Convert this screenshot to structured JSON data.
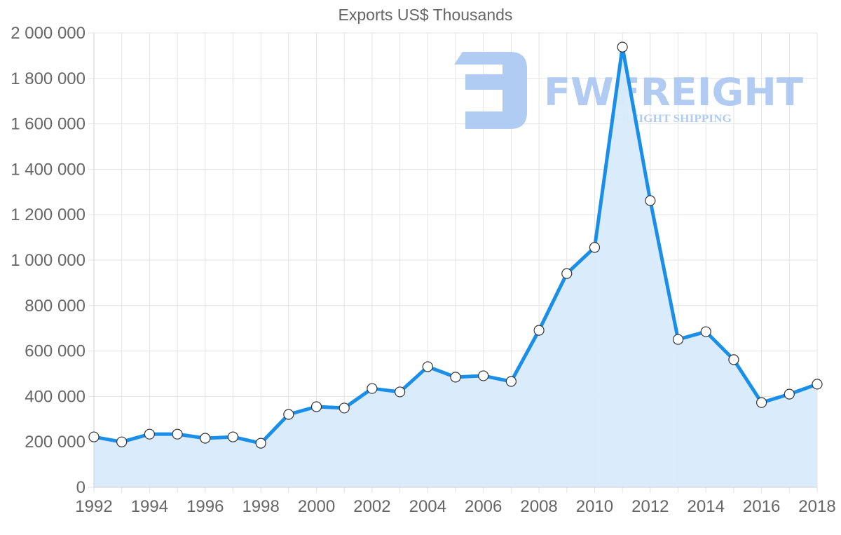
{
  "chart_data": {
    "type": "line",
    "title": "Exports US$ Thousands",
    "xlabel": "",
    "ylabel": "",
    "x": [
      1992,
      1993,
      1994,
      1995,
      1996,
      1997,
      1998,
      1999,
      2000,
      2001,
      2002,
      2003,
      2004,
      2005,
      2006,
      2007,
      2008,
      2009,
      2010,
      2011,
      2012,
      2013,
      2014,
      2015,
      2016,
      2017,
      2018
    ],
    "series": [
      {
        "name": "Exports US$ Thousands",
        "values": [
          222000,
          200000,
          234000,
          234000,
          216000,
          222000,
          194000,
          321000,
          355000,
          349000,
          435000,
          420000,
          531000,
          485000,
          491000,
          466000,
          691000,
          941000,
          1056000,
          1938000,
          1262000,
          651000,
          685000,
          562000,
          373000,
          410000,
          454000
        ],
        "line_color": "#1a8fea",
        "fill_color": "#d8ebfc",
        "marker": "white-circle"
      }
    ],
    "xticks": [
      "1992",
      "1994",
      "1996",
      "1998",
      "2000",
      "2002",
      "2004",
      "2006",
      "2008",
      "2010",
      "2012",
      "2014",
      "2016",
      "2018"
    ],
    "yticks": [
      "0",
      "200 000",
      "400 000",
      "600 000",
      "800 000",
      "1 000 000",
      "1 200 000",
      "1 400 000",
      "1 600 000",
      "1 800 000",
      "2 000 000"
    ],
    "ylim": [
      0,
      2000000
    ],
    "xlim": [
      1992,
      2018
    ],
    "grid": true,
    "legend": "none",
    "filled": true
  },
  "watermark": {
    "brand": "FWFREIGHT",
    "tagline": "FREIGHT SHIPPING",
    "color": "#a9c6f1"
  }
}
